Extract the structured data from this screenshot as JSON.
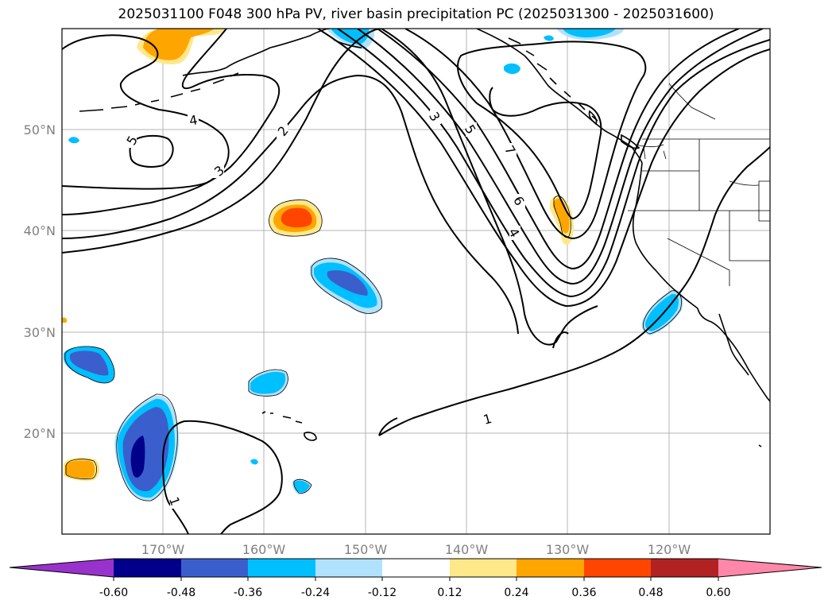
{
  "title": "2025031100 F048 300 hPa PV, river basin precipitation PC (2025031300 - 2025031600)",
  "map": {
    "lat_labels": [
      "50°N",
      "40°N",
      "30°N",
      "20°N"
    ],
    "lon_labels": [
      "170°W",
      "160°W",
      "150°W",
      "140°W",
      "130°W",
      "120°W"
    ],
    "extent": {
      "lon": [
        -180,
        -110
      ],
      "lat": [
        10,
        60
      ]
    },
    "grid": true,
    "pv_contour_labels": [
      "4",
      "5",
      "2",
      "3",
      "3",
      "5",
      "7",
      "6",
      "4",
      "1",
      "1"
    ]
  },
  "colorbar": {
    "labels": [
      "-0.60",
      "-0.48",
      "-0.36",
      "-0.24",
      "-0.12",
      "0.12",
      "0.24",
      "0.36",
      "0.48",
      "0.60"
    ],
    "colors": [
      "#9932cc",
      "#00008b",
      "#3a5fcd",
      "#00bfff",
      "#b0e2ff",
      "#ffffff",
      "#ffe88a",
      "#ffa500",
      "#ff4500",
      "#b22222",
      "#ff88aa"
    ]
  },
  "colors": {
    "deep_blue": "#00008b",
    "med_blue": "#3a5fcd",
    "cyan": "#00bfff",
    "light_cyan": "#b0e2ff",
    "light_yellow": "#ffe88a",
    "orange": "#ffa500",
    "red_orange": "#ff4500"
  }
}
